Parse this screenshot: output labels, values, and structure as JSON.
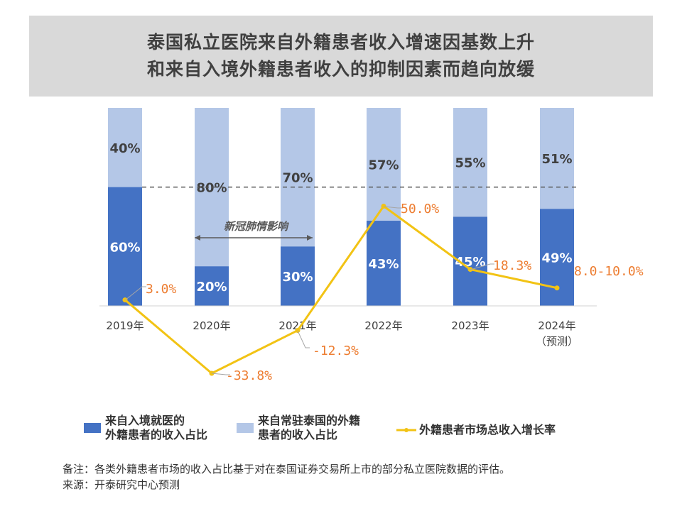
{
  "title_lines": [
    "泰国私立医院来自外籍患者收入增速因基数上升",
    "和来自入境外籍患者收入的抑制因素而趋向放缓"
  ],
  "chart_data": {
    "type": "bar+line",
    "categories": [
      "2019年",
      "2020年",
      "2021年",
      "2022年",
      "2023年",
      "2024年"
    ],
    "category_sublabels": [
      "",
      "",
      "",
      "",
      "",
      "（预测）"
    ],
    "series": [
      {
        "name": "来自入境就医的外籍患者的收入占比",
        "type": "stacked-bar",
        "values": [
          60,
          20,
          30,
          43,
          45,
          49
        ],
        "labels": [
          "60%",
          "20%",
          "30%",
          "43%",
          "45%",
          "49%"
        ],
        "color": "#4472c4"
      },
      {
        "name": "来自常驻泰国的外籍患者的收入占比",
        "type": "stacked-bar",
        "values": [
          40,
          80,
          70,
          57,
          55,
          51
        ],
        "labels": [
          "40%",
          "80%",
          "70%",
          "57%",
          "55%",
          "51%"
        ],
        "color": "#b4c7e7"
      },
      {
        "name": "外籍患者市场总收入增长率",
        "type": "line",
        "values": [
          3.0,
          -33.8,
          -12.3,
          50.0,
          18.3,
          9.0
        ],
        "labels": [
          "3.0%",
          "-33.8%",
          "-12.3%",
          "50.0%",
          "18.3%",
          "8.0-10.0%"
        ],
        "color": "#f2c314",
        "label_color": "#ed7d31"
      }
    ],
    "reference_line": {
      "value": 60,
      "style": "dashed"
    },
    "annotation": {
      "text": "新冠肺情影响",
      "from": "2020年",
      "to": "2021年"
    },
    "legend_position": "bottom"
  },
  "legend": [
    {
      "lines": [
        "来自入境就医的",
        "外籍患者的收入占比"
      ]
    },
    {
      "lines": [
        "来自常驻泰国的外籍",
        "患者的收入占比"
      ]
    },
    {
      "lines": [
        "外籍患者市场总收入增长率"
      ]
    }
  ],
  "notes": [
    "备注：各类外籍患者市场的收入占比基于对在泰国证券交易所上市的部分私立医院数据的评估。",
    "来源：开泰研究中心预测"
  ]
}
